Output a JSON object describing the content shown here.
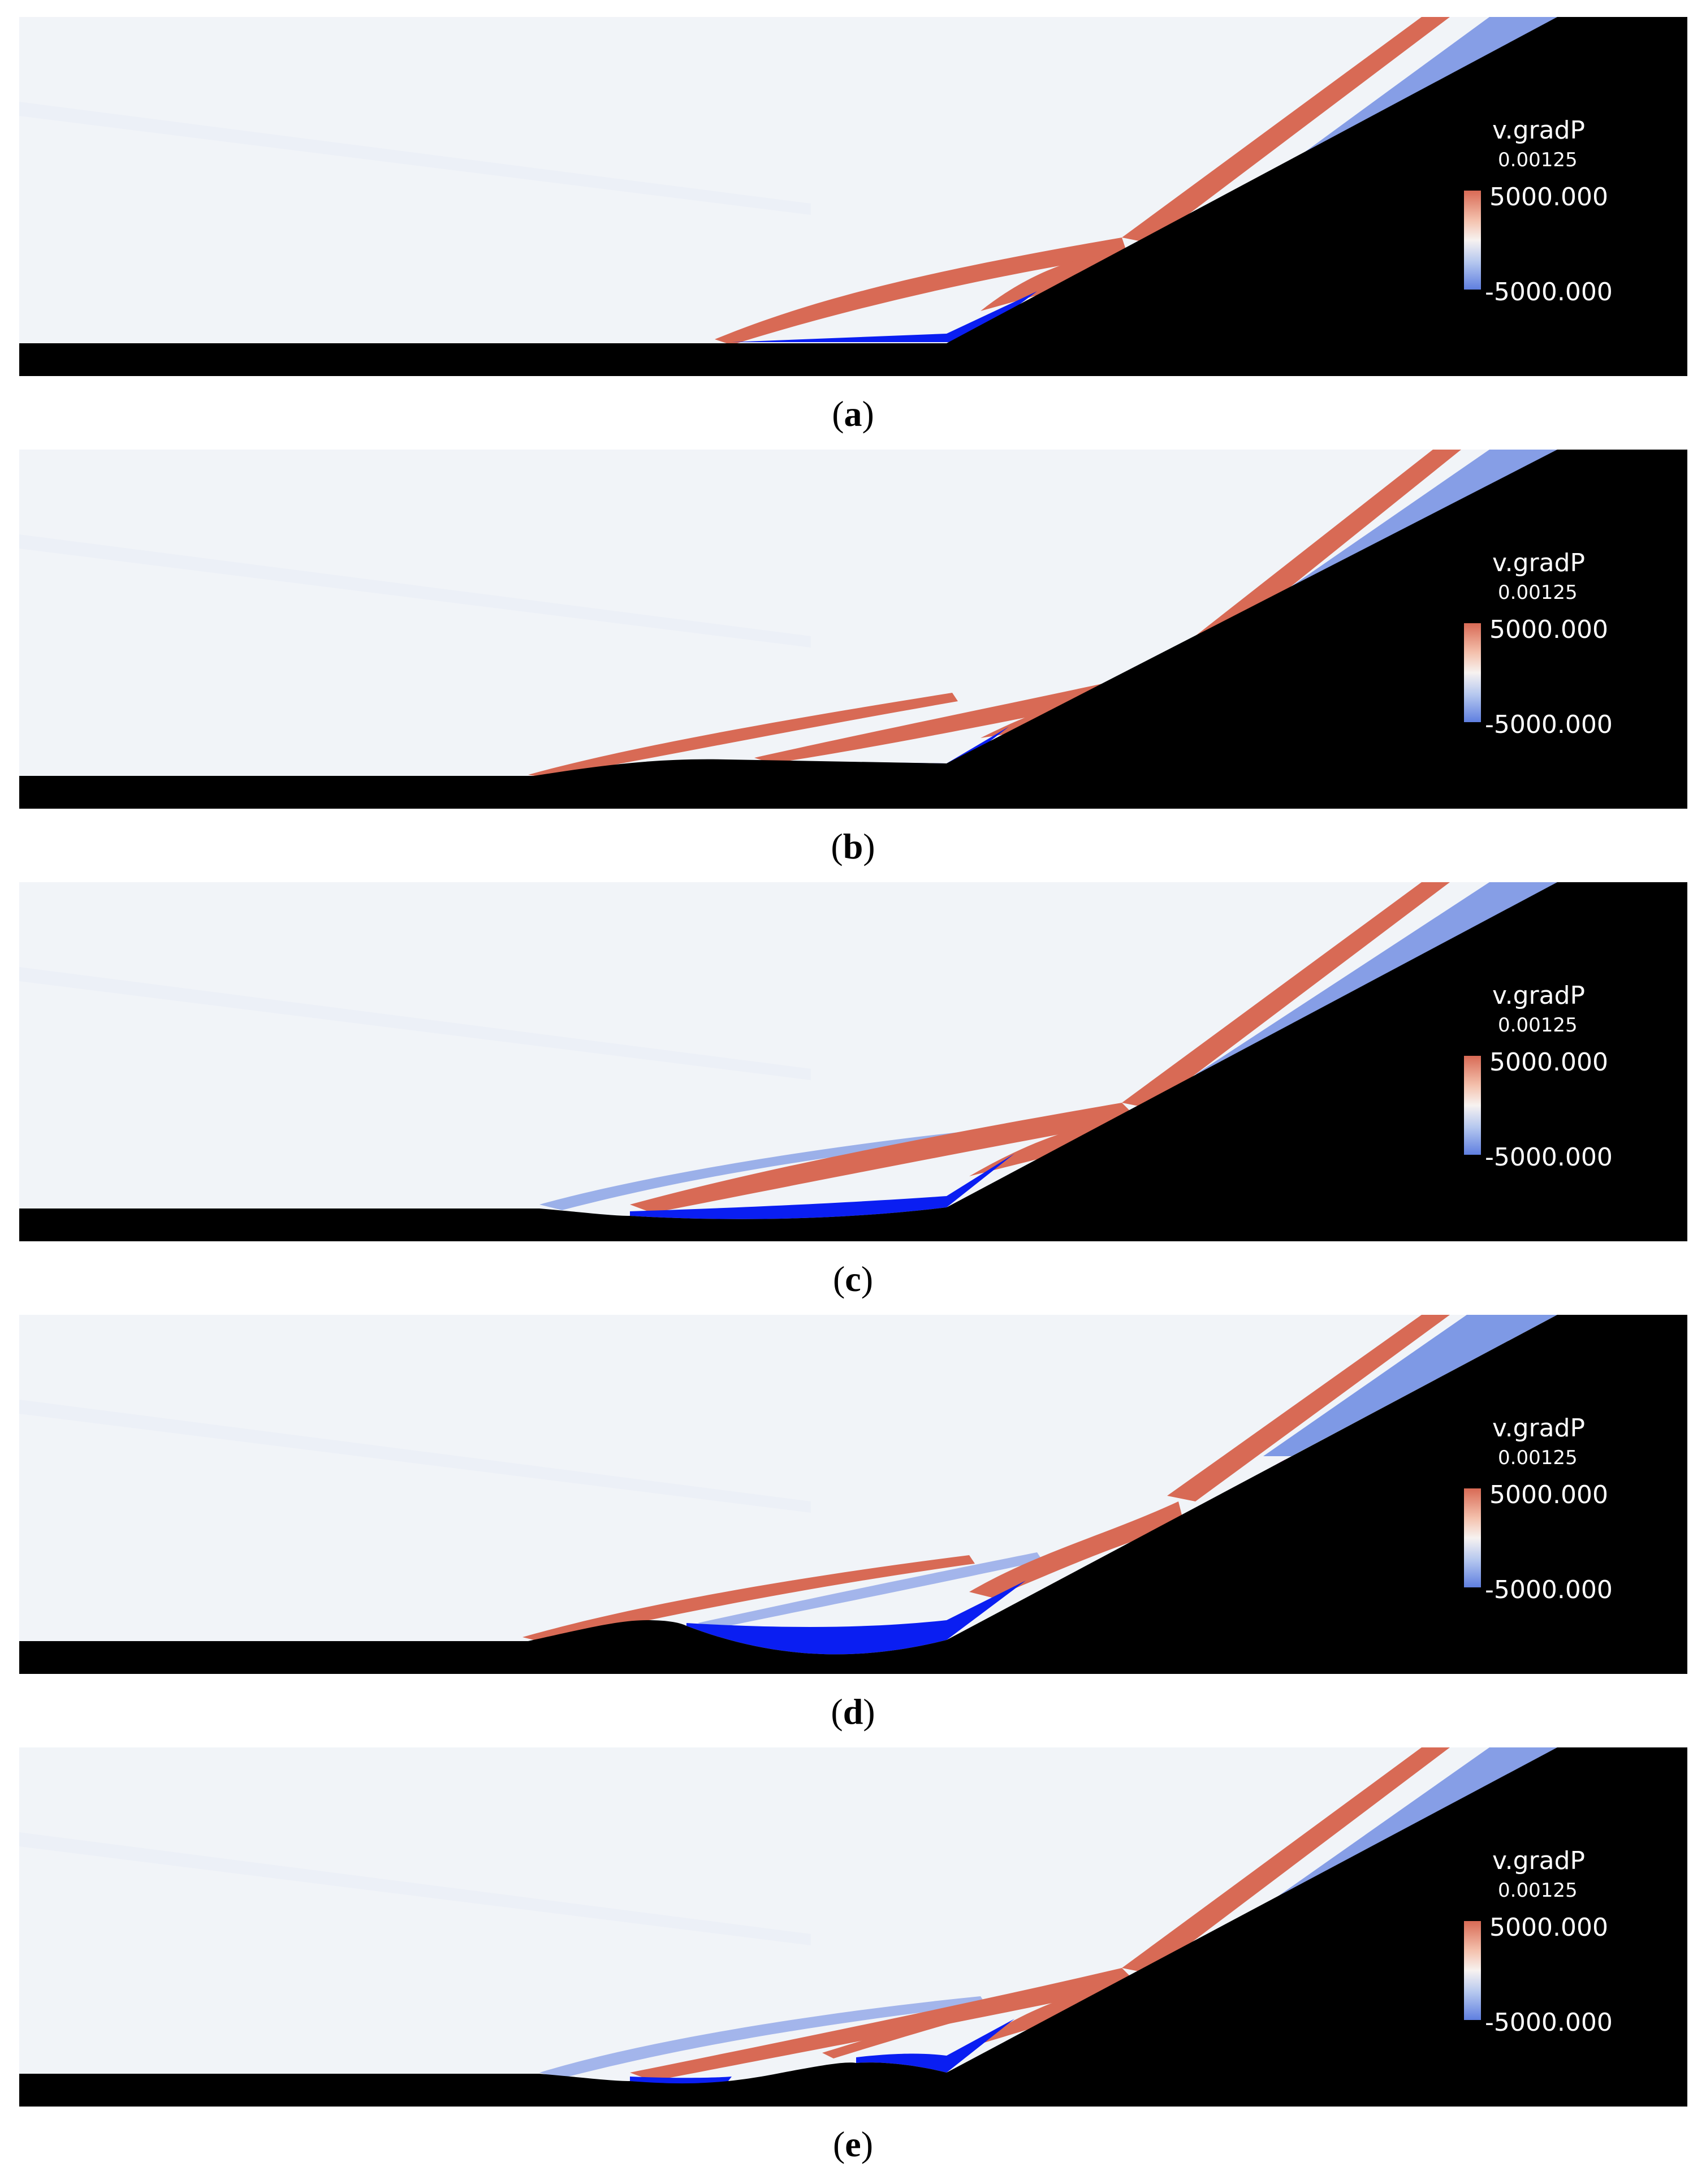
{
  "figure": {
    "panels": [
      {
        "id": "a",
        "caption_open": "(",
        "caption_letter": "a",
        "caption_close": ")"
      },
      {
        "id": "b",
        "caption_open": "(",
        "caption_letter": "b",
        "caption_close": ")"
      },
      {
        "id": "c",
        "caption_open": "(",
        "caption_letter": "c",
        "caption_close": ")"
      },
      {
        "id": "d",
        "caption_open": "(",
        "caption_letter": "d",
        "caption_close": ")"
      },
      {
        "id": "e",
        "caption_open": "(",
        "caption_letter": "e",
        "caption_close": ")"
      }
    ],
    "legend": {
      "variable": "v.gradP",
      "time": "0.00125",
      "max_label": "5000.000",
      "min_label": "-5000.000"
    },
    "colors": {
      "background_field": "#f1f4f8",
      "positive": "#d86a55",
      "negative": "#6282e0",
      "separation": "#0a1ef2",
      "magenta": "#f07ce6",
      "solid": "#000000"
    }
  }
}
